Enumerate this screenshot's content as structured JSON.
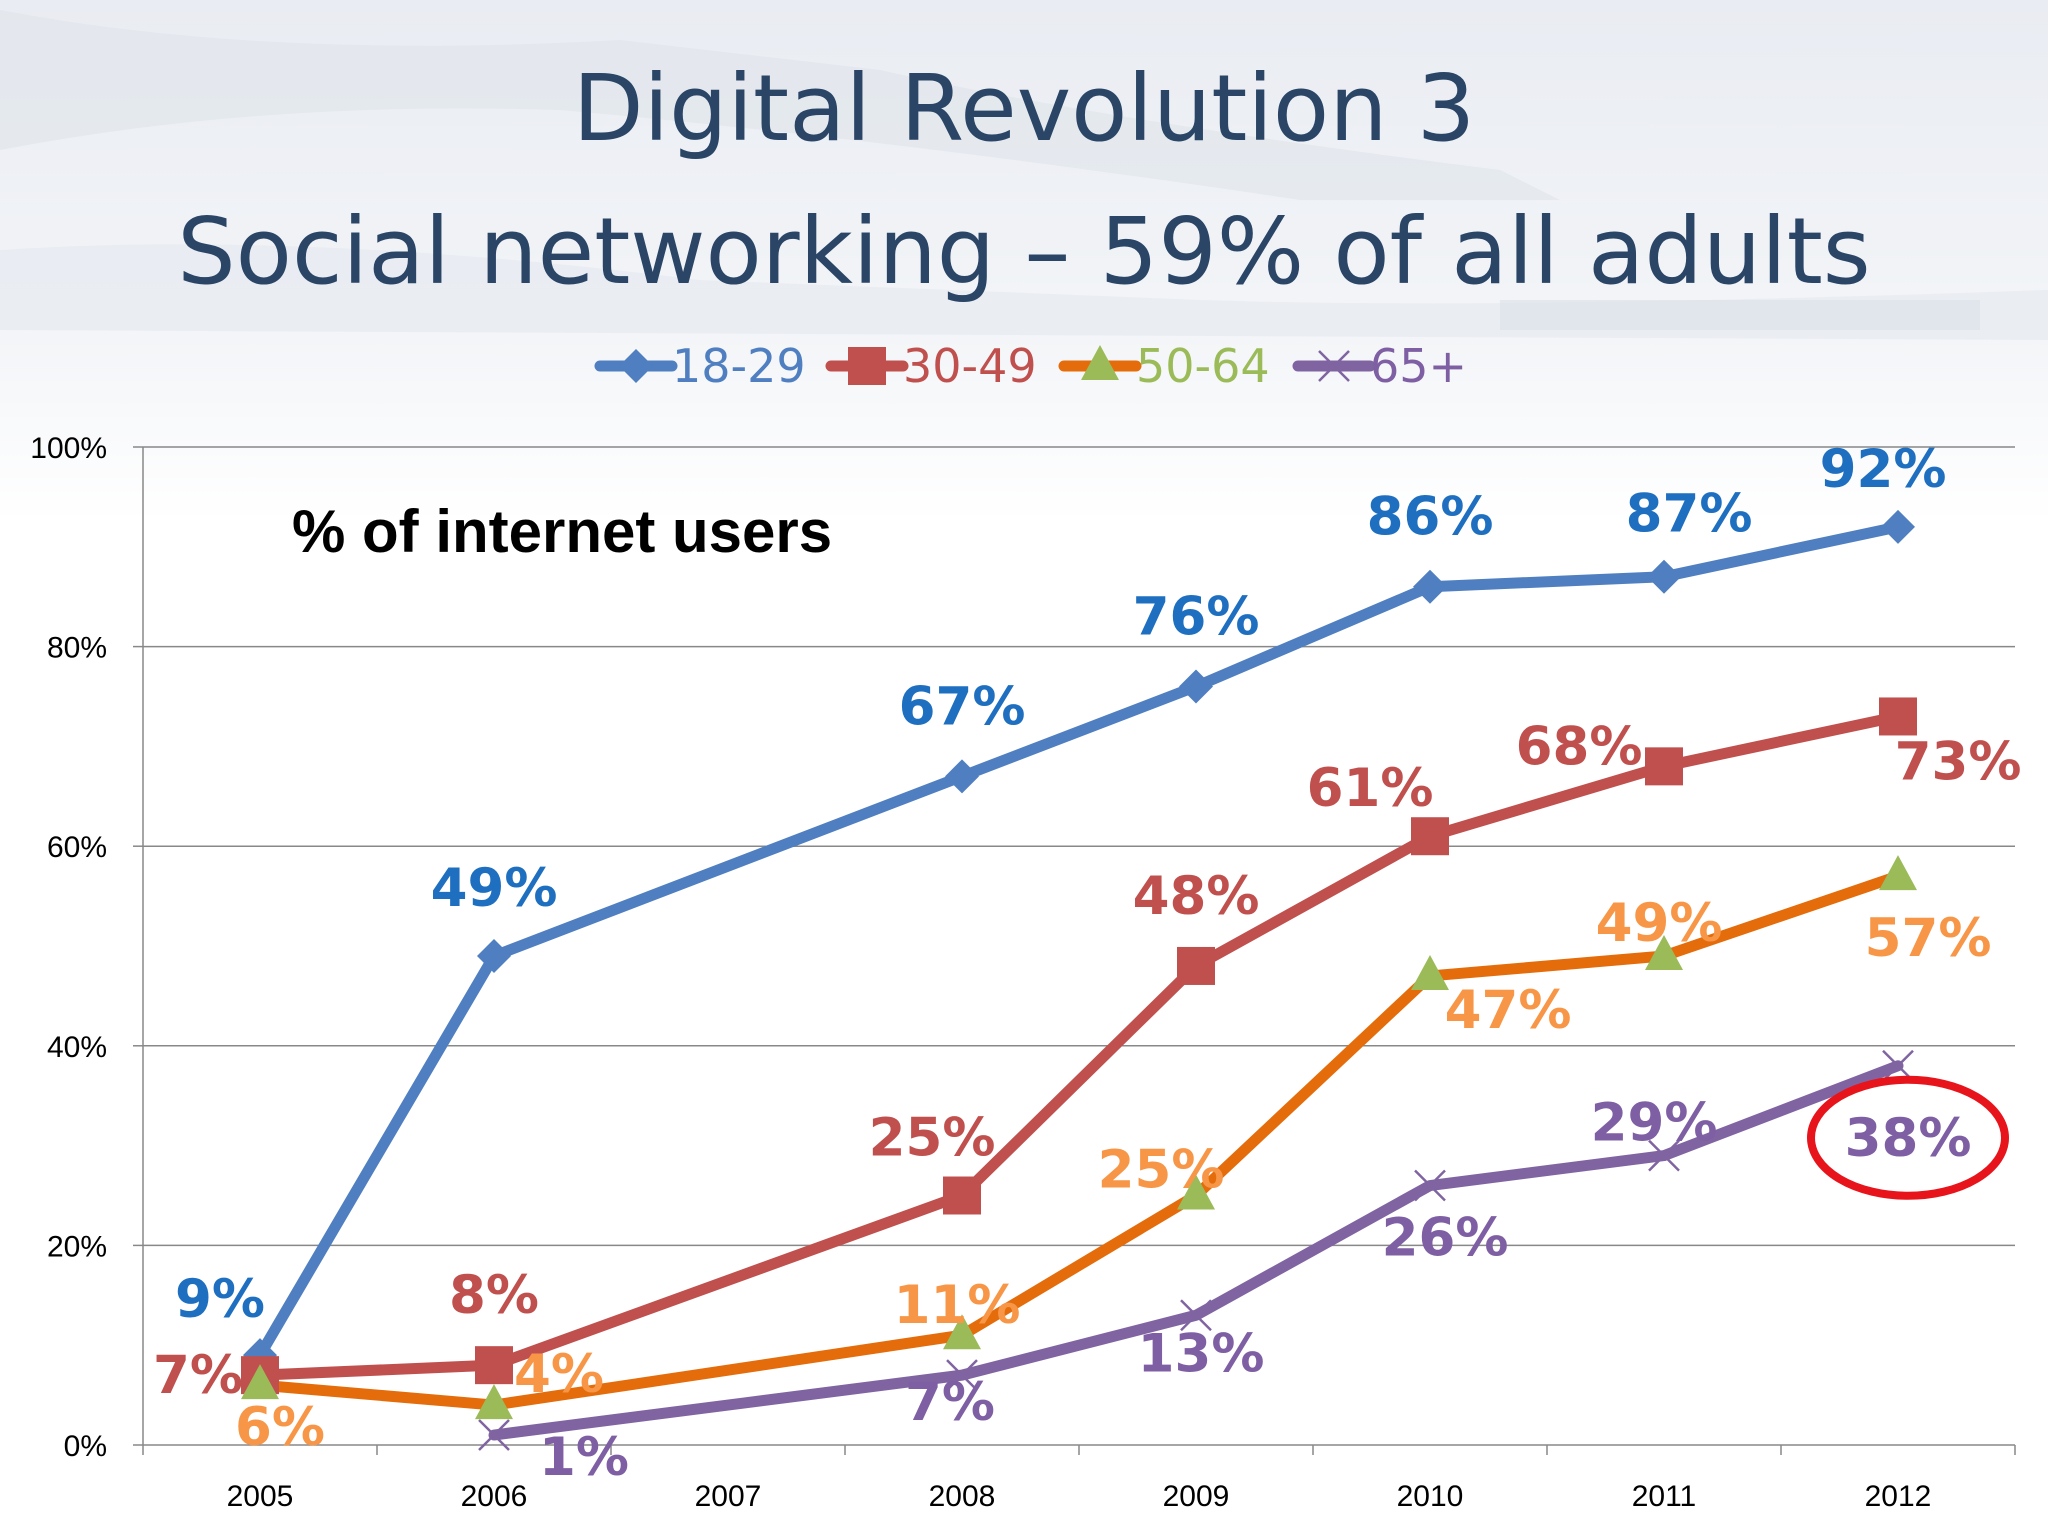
{
  "slide": {
    "title_line1": "Digital Revolution 3",
    "title_line2": "Social networking – 59% of all adults"
  },
  "chart_data": {
    "type": "line",
    "title": "Digital Revolution 3",
    "subtitle": "Social networking – 59% of all adults",
    "annotation": "% of internet users",
    "x": [
      "2005",
      "2006",
      "2007",
      "2008",
      "2009",
      "2010",
      "2011",
      "2012"
    ],
    "ylim": [
      0,
      100
    ],
    "yticks": [
      "0%",
      "20%",
      "40%",
      "60%",
      "80%",
      "100%"
    ],
    "grid": true,
    "legend_position": "top",
    "highlighted_value": "38%",
    "highlight_color": "#e8141b",
    "series": [
      {
        "name": "18-29",
        "color": "#4f7fc0",
        "label_color": "#1f6fc0",
        "marker": "diamond",
        "values": [
          9,
          49,
          null,
          67,
          76,
          86,
          87,
          92
        ],
        "labels": [
          "9%",
          "49%",
          null,
          "67%",
          "76%",
          "86%",
          "87%",
          "92%"
        ]
      },
      {
        "name": "30-49",
        "color": "#c0504d",
        "label_color": "#c0504d",
        "marker": "square",
        "values": [
          7,
          8,
          null,
          25,
          48,
          61,
          68,
          73
        ],
        "labels": [
          "7%",
          "8%",
          null,
          "25%",
          "48%",
          "61%",
          "68%",
          "73%"
        ]
      },
      {
        "name": "50-64",
        "color": "#e46c0a",
        "label_color": "#f79646",
        "marker": "triangle",
        "marker_color": "#9bbb59",
        "values": [
          6,
          4,
          null,
          11,
          25,
          47,
          49,
          57
        ],
        "labels": [
          "6%",
          "4%",
          null,
          "11%",
          "25%",
          "47%",
          "49%",
          "57%"
        ]
      },
      {
        "name": "65+",
        "color": "#8064a2",
        "label_color": "#7f5fa3",
        "marker": "x",
        "values": [
          null,
          1,
          null,
          7,
          13,
          26,
          29,
          38
        ],
        "labels": [
          null,
          "1%",
          null,
          "7%",
          "13%",
          "26%",
          "29%",
          "38%"
        ]
      }
    ]
  }
}
